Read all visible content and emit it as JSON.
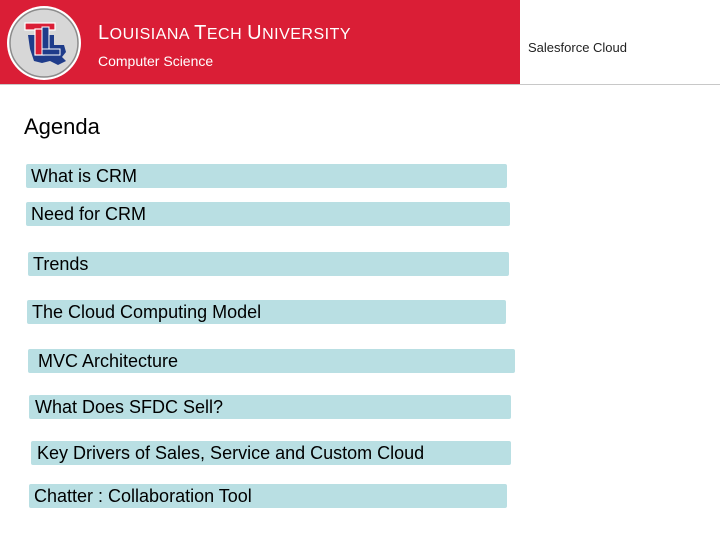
{
  "header": {
    "university_name": {
      "l1": "L",
      "r1": "OUISIANA ",
      "l2": "T",
      "r2": "ECH ",
      "l3": "U",
      "r3": "NIVERSITY"
    },
    "department": "Computer Science",
    "course_label": "Salesforce Cloud",
    "logo_text": "LT",
    "brand_red": "#da1e36",
    "brand_blue": "#1f3c8a"
  },
  "agenda": {
    "title": "Agenda",
    "item_color": "#b9dfe3",
    "items": [
      {
        "label": "What is CRM"
      },
      {
        "label": "Need for CRM"
      },
      {
        "label": "Trends"
      },
      {
        "label": "The Cloud Computing Model"
      },
      {
        "label": "MVC Architecture"
      },
      {
        "label": "What Does SFDC Sell?"
      },
      {
        "label": "Key Drivers of Sales, Service and Custom Cloud"
      },
      {
        "label": "Chatter : Collaboration Tool"
      }
    ]
  }
}
